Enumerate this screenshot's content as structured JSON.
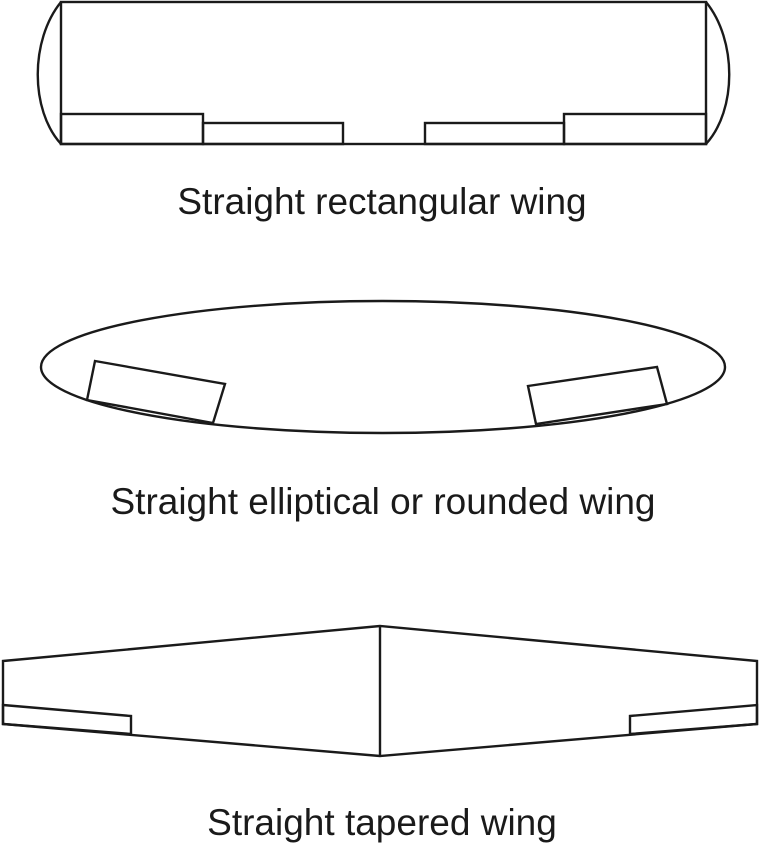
{
  "colors": {
    "line": "#1a1a1a",
    "background": "#ffffff"
  },
  "wings": [
    {
      "id": "rectangular",
      "caption": "Straight rectangular wing"
    },
    {
      "id": "elliptical",
      "caption": "Straight elliptical or rounded wing"
    },
    {
      "id": "tapered",
      "caption": "Straight tapered wing"
    }
  ]
}
